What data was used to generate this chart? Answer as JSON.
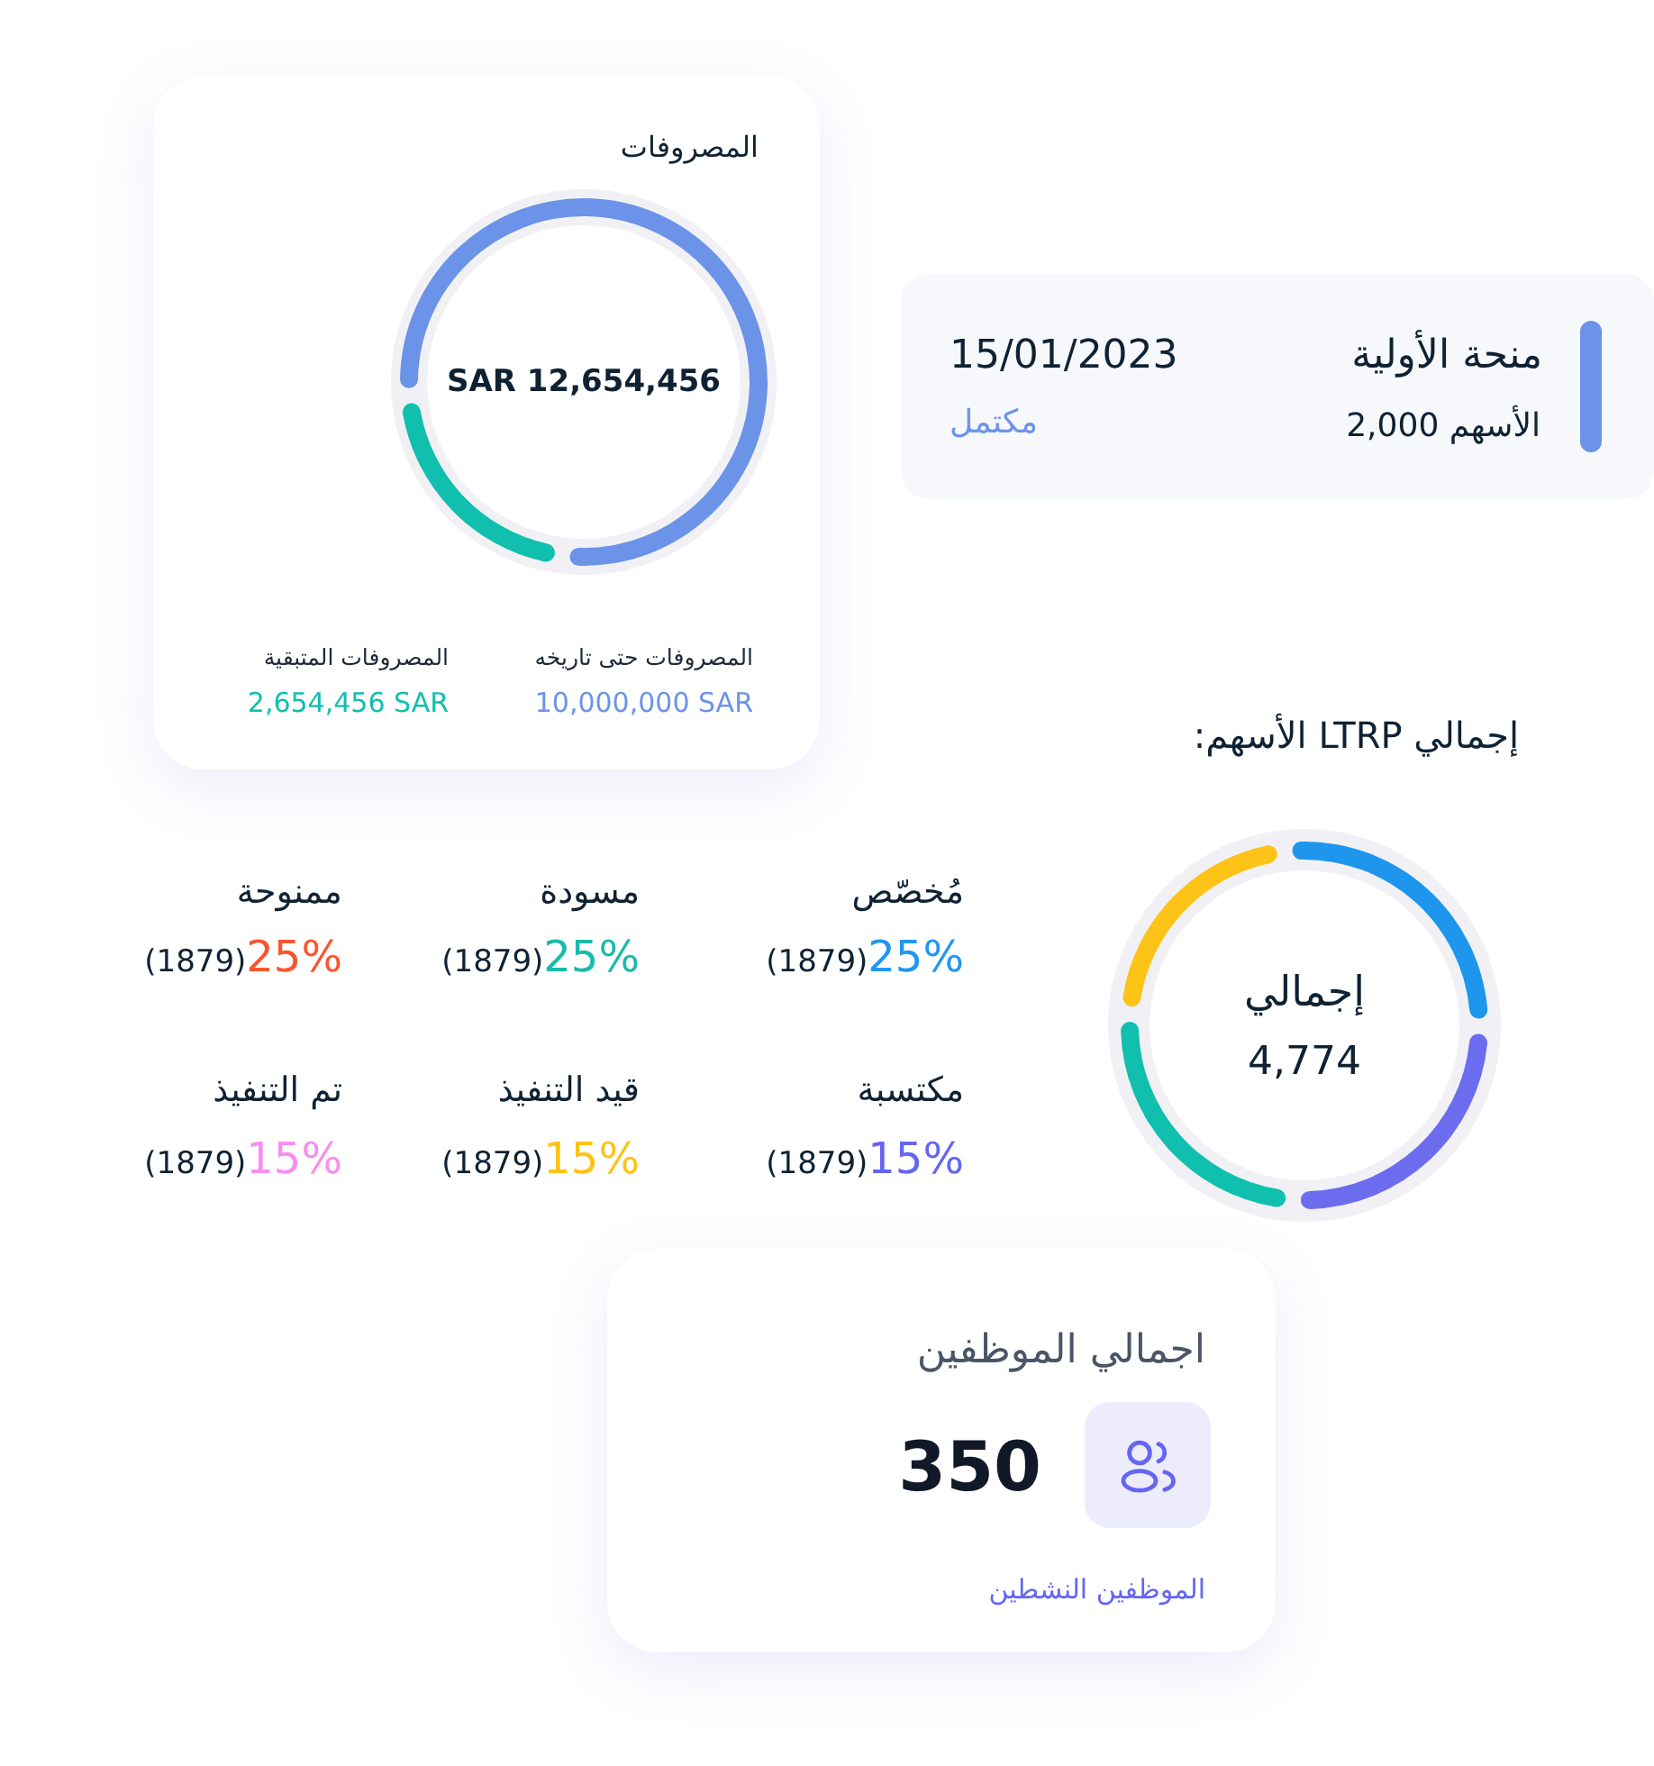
{
  "chart_data": [
    {
      "type": "donut",
      "title": "المصروفات",
      "categories": [
        "المصروفات حتى تاريخه",
        "المصروفات المتبقية"
      ],
      "values": [
        10000000,
        2654456
      ],
      "colors": [
        "#6b93e8",
        "#10bfae"
      ],
      "value_labels": [
        "10,000,000 SAR",
        "2,654,456 SAR"
      ],
      "annotations": [
        "SAR 12,654,456"
      ]
    },
    {
      "type": "other",
      "title": "منحة الأولية",
      "annotations": [
        "الأسهم 2,000",
        "15/01/2023",
        "مكتمل"
      ]
    },
    {
      "type": "donut",
      "title": "إجمالي LTRP الأسهم:",
      "categories": [
        null,
        null,
        null,
        null
      ],
      "values": [
        27,
        26,
        25,
        22
      ],
      "colors": [
        "#1e96ee",
        "#6c6cef",
        "#10bfae",
        "#fdc316"
      ],
      "annotations": [
        "إجمالي",
        "4,774"
      ]
    },
    {
      "type": "other",
      "categories": [
        "مُخصّص",
        "مسودة",
        "ممنوحة",
        "مكتسبة",
        "قيد التنفيذ",
        "تم التنفيذ"
      ],
      "value_labels": [
        "25%",
        "25%",
        "25%",
        "15%",
        "15%",
        "15%"
      ],
      "colors": [
        "#2196f3",
        "#19bba9",
        "#fa5530",
        "#6466f1",
        "#fdc316",
        "#f78ef0"
      ],
      "annotations": [
        "(1879)",
        "(1879)",
        "(1879)",
        "(1879)",
        "(1879)",
        "(1879)"
      ]
    },
    {
      "type": "other",
      "title": "اجمالي الموظفين",
      "annotations": [
        "350",
        "الموظفين النشطين"
      ]
    }
  ]
}
